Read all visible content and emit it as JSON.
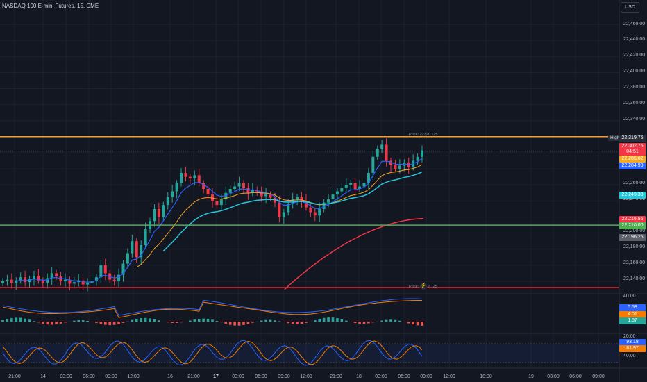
{
  "title": "NASDAQ 100 E-mini Futures, 15, CME",
  "currency_button": "USD",
  "levels": {
    "upper_label": "Price: 22320.125",
    "lower_label_a": "Price:",
    "lower_label_b": "2.125",
    "upper_color": "#f59d2f",
    "green_color": "#4caf50",
    "lower_color": "#f23645"
  },
  "price_axis": [
    "22,460.00",
    "22,440.00",
    "22,420.00",
    "22,400.00",
    "22,380.00",
    "22,360.00",
    "22,340.00",
    "22,260.00",
    "22,240.00",
    "22,200.00",
    "22,180.00",
    "22,160.00",
    "22,140.00"
  ],
  "high_label": "High",
  "price_tags": [
    {
      "text": "22,319.75",
      "bg": "#2a2e39"
    },
    {
      "text": "22,302.75",
      "bg": "#f23645"
    },
    {
      "text": "04:51",
      "bg": "#f23645"
    },
    {
      "text": "22,285.62",
      "bg": "#f5a623"
    },
    {
      "text": "22,284.99",
      "bg": "#2962ff"
    },
    {
      "text": "22,249.33",
      "bg": "#26c6da"
    },
    {
      "text": "22,216.55",
      "bg": "#f23645"
    },
    {
      "text": "22,210.00",
      "bg": "#4caf50"
    },
    {
      "text": "22,196.25",
      "bg": "#5d606b"
    }
  ],
  "macd_axis": [
    "40.00"
  ],
  "macd_tags": [
    {
      "text": "5.58",
      "bg": "#2962ff"
    },
    {
      "text": "4.01",
      "bg": "#f57c00"
    },
    {
      "text": "1.57",
      "bg": "#26a69a"
    }
  ],
  "stoch_axis": [
    "20.00",
    "40.00"
  ],
  "stoch_tags": [
    {
      "text": "93.18",
      "bg": "#2962ff"
    },
    {
      "text": "81.97",
      "bg": "#f57c00"
    }
  ],
  "time_axis": [
    {
      "t": "21:00",
      "bold": false
    },
    {
      "t": "14",
      "bold": false
    },
    {
      "t": "03:00",
      "bold": false
    },
    {
      "t": "06:00",
      "bold": false
    },
    {
      "t": "09:00",
      "bold": false
    },
    {
      "t": "12:00",
      "bold": false
    },
    {
      "t": "16",
      "bold": false
    },
    {
      "t": "21:00",
      "bold": false
    },
    {
      "t": "17",
      "bold": true
    },
    {
      "t": "03:00",
      "bold": false
    },
    {
      "t": "06:00",
      "bold": false
    },
    {
      "t": "09:00",
      "bold": false
    },
    {
      "t": "12:00",
      "bold": false
    },
    {
      "t": "21:00",
      "bold": false
    },
    {
      "t": "18",
      "bold": false
    },
    {
      "t": "03:00",
      "bold": false
    },
    {
      "t": "06:00",
      "bold": false
    },
    {
      "t": "09:00",
      "bold": false
    },
    {
      "t": "12:00",
      "bold": false
    },
    {
      "t": "18:00",
      "bold": false
    },
    {
      "t": "19",
      "bold": false
    },
    {
      "t": "03:00",
      "bold": false
    },
    {
      "t": "06:00",
      "bold": false
    },
    {
      "t": "09:00",
      "bold": false
    }
  ],
  "chart_data": {
    "type": "candlestick",
    "title": "NASDAQ 100 E-mini Futures, 15, CME",
    "ylim": [
      22120,
      22470
    ],
    "close_path": [
      22140,
      22142,
      22138,
      22141,
      22145,
      22139,
      22143,
      22147,
      22141,
      22138,
      22144,
      22150,
      22146,
      22140,
      22142,
      22137,
      22139,
      22141,
      22136,
      22138,
      22140,
      22145,
      22160,
      22150,
      22142,
      22140,
      22148,
      22162,
      22175,
      22190,
      22170,
      22185,
      22205,
      22215,
      22230,
      22220,
      22235,
      22245,
      22252,
      22262,
      22275,
      22270,
      22268,
      22272,
      22262,
      22255,
      22248,
      22240,
      22235,
      22242,
      22250,
      22255,
      22258,
      22262,
      22256,
      22250,
      22254,
      22252,
      22246,
      22248,
      22244,
      22238,
      22220,
      22226,
      22236,
      22242,
      22245,
      22240,
      22232,
      22226,
      22222,
      22230,
      22238,
      22242,
      22248,
      22252,
      22256,
      22260,
      22262,
      22255,
      22258,
      22262,
      22275,
      22295,
      22305,
      22310,
      22290,
      22285,
      22280,
      22284,
      22288,
      22282,
      22290,
      22295,
      22303
    ],
    "moving_averages": [
      {
        "name": "",
        "color": "#2962ff",
        "last": 22284.99
      },
      {
        "name": "",
        "color": "#f5a623",
        "last": 22285.62
      },
      {
        "name": "",
        "color": "#26c6da",
        "last": 22249.33
      },
      {
        "name": "",
        "color": "#f23645",
        "last": 22216.55
      }
    ],
    "reference_lines": [
      22320.125,
      22210,
      22132.125
    ],
    "high": 22319.75
  }
}
